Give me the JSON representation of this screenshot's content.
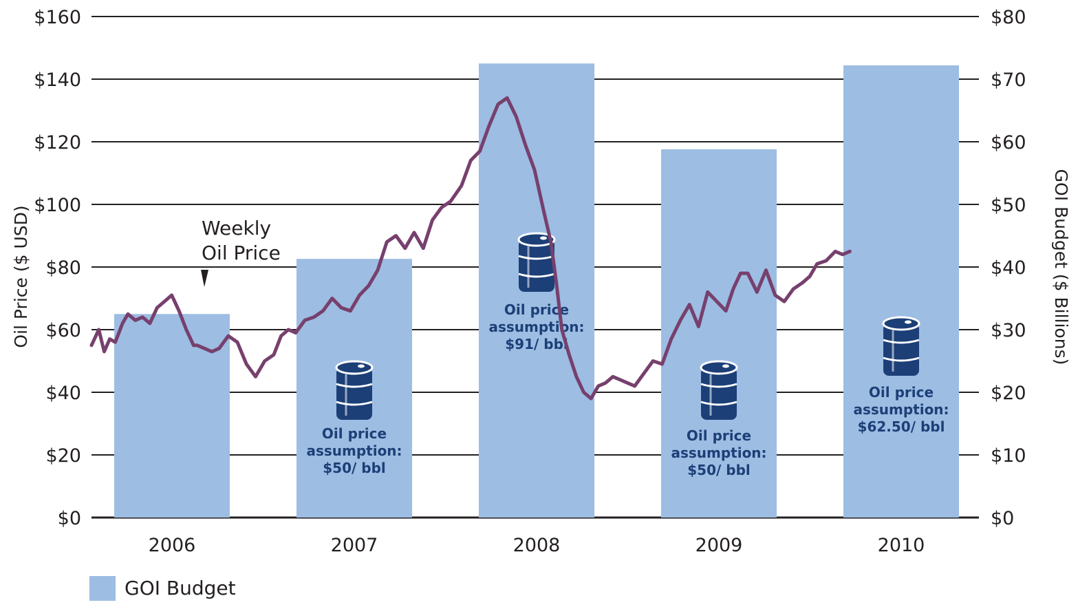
{
  "chart_data": {
    "type": "bar",
    "categories": [
      "2006",
      "2007",
      "2008",
      "2009",
      "2010"
    ],
    "series": [
      {
        "name": "GOI Budget",
        "axis": "right",
        "values": [
          32.5,
          41.3,
          72.5,
          58.8,
          72.2
        ]
      },
      {
        "axis": "left",
        "type": "line",
        "x": [
          2006.0,
          2006.04,
          2006.07,
          2006.1,
          2006.13,
          2006.17,
          2006.2,
          2006.24,
          2006.28,
          2006.32,
          2006.36,
          2006.4,
          2006.44,
          2006.48,
          2006.52,
          2006.56,
          2006.58,
          2006.62,
          2006.66,
          2006.7,
          2006.75,
          2006.8,
          2006.85,
          2006.9,
          2006.95,
          2007.0,
          2007.04,
          2007.08,
          2007.12,
          2007.17,
          2007.22,
          2007.27,
          2007.32,
          2007.37,
          2007.42,
          2007.47,
          2007.52,
          2007.57,
          2007.62,
          2007.67,
          2007.72,
          2007.77,
          2007.82,
          2007.87,
          2007.92,
          2007.97,
          2008.03,
          2008.08,
          2008.13,
          2008.18,
          2008.23,
          2008.28,
          2008.33,
          2008.38,
          2008.43,
          2008.48,
          2008.52,
          2008.55,
          2008.58,
          2008.62,
          2008.66,
          2008.7,
          2008.74,
          2008.78,
          2008.82,
          2008.86,
          2008.9,
          2008.94,
          2008.98,
          2009.03,
          2009.08,
          2009.13,
          2009.18,
          2009.23,
          2009.28,
          2009.33,
          2009.38,
          2009.43,
          2009.48,
          2009.52,
          2009.56,
          2009.6,
          2009.65,
          2009.7,
          2009.75,
          2009.8,
          2009.85,
          2009.9,
          2009.94,
          2009.98,
          2010.03,
          2010.08,
          2010.12,
          2010.16
        ],
        "values": [
          55,
          60,
          53,
          57,
          56,
          62,
          65,
          63,
          64,
          62,
          67,
          69,
          71,
          66,
          60,
          55,
          55,
          54,
          53,
          54,
          58,
          56,
          49,
          45,
          50,
          52,
          58,
          60,
          59,
          63,
          64,
          66,
          70,
          67,
          66,
          71,
          74,
          79,
          88,
          90,
          86,
          91,
          86,
          95,
          99,
          101,
          106,
          114,
          117,
          125,
          132,
          134,
          128,
          119,
          111,
          98,
          88,
          75,
          60,
          52,
          45,
          40,
          38,
          42,
          43,
          45,
          44,
          43,
          42,
          46,
          50,
          49,
          57,
          63,
          68,
          61,
          72,
          69,
          66,
          73,
          78,
          78,
          72,
          79,
          71,
          69,
          73,
          75,
          77,
          81,
          82,
          85,
          84,
          85
        ],
        "label": "Weekly Oil Price"
      }
    ],
    "annotations": [
      {
        "category": "2007",
        "text": [
          "Oil price",
          "assumption:",
          "$50/ bbl"
        ]
      },
      {
        "category": "2008",
        "text": [
          "Oil price",
          "assumption:",
          "$91/ bbl"
        ]
      },
      {
        "category": "2009",
        "text": [
          "Oil price",
          "assumption:",
          "$50/ bbl"
        ]
      },
      {
        "category": "2010",
        "text": [
          "Oil price",
          "assumption:",
          "$62.50/ bbl"
        ]
      }
    ],
    "left_axis": {
      "label": "Oil Price ($ USD)",
      "ticks": [
        "$0",
        "$20",
        "$40",
        "$60",
        "$80",
        "$100",
        "$120",
        "$140",
        "$160"
      ],
      "ylim": [
        0,
        160
      ]
    },
    "right_axis": {
      "label": "GOI Budget ($ Billions)",
      "ticks": [
        "$0",
        "$10",
        "$20",
        "$30",
        "$40",
        "$50",
        "$60",
        "$70",
        "$80"
      ],
      "ylim": [
        0,
        80
      ]
    },
    "legend": {
      "entries": [
        "GOI Budget"
      ],
      "placement": "bottom-left"
    },
    "grid": true,
    "colors": {
      "bar": "#9dbde3",
      "line": "#77406d",
      "grid": "#231f20",
      "barrel": "#1c3f77"
    }
  }
}
